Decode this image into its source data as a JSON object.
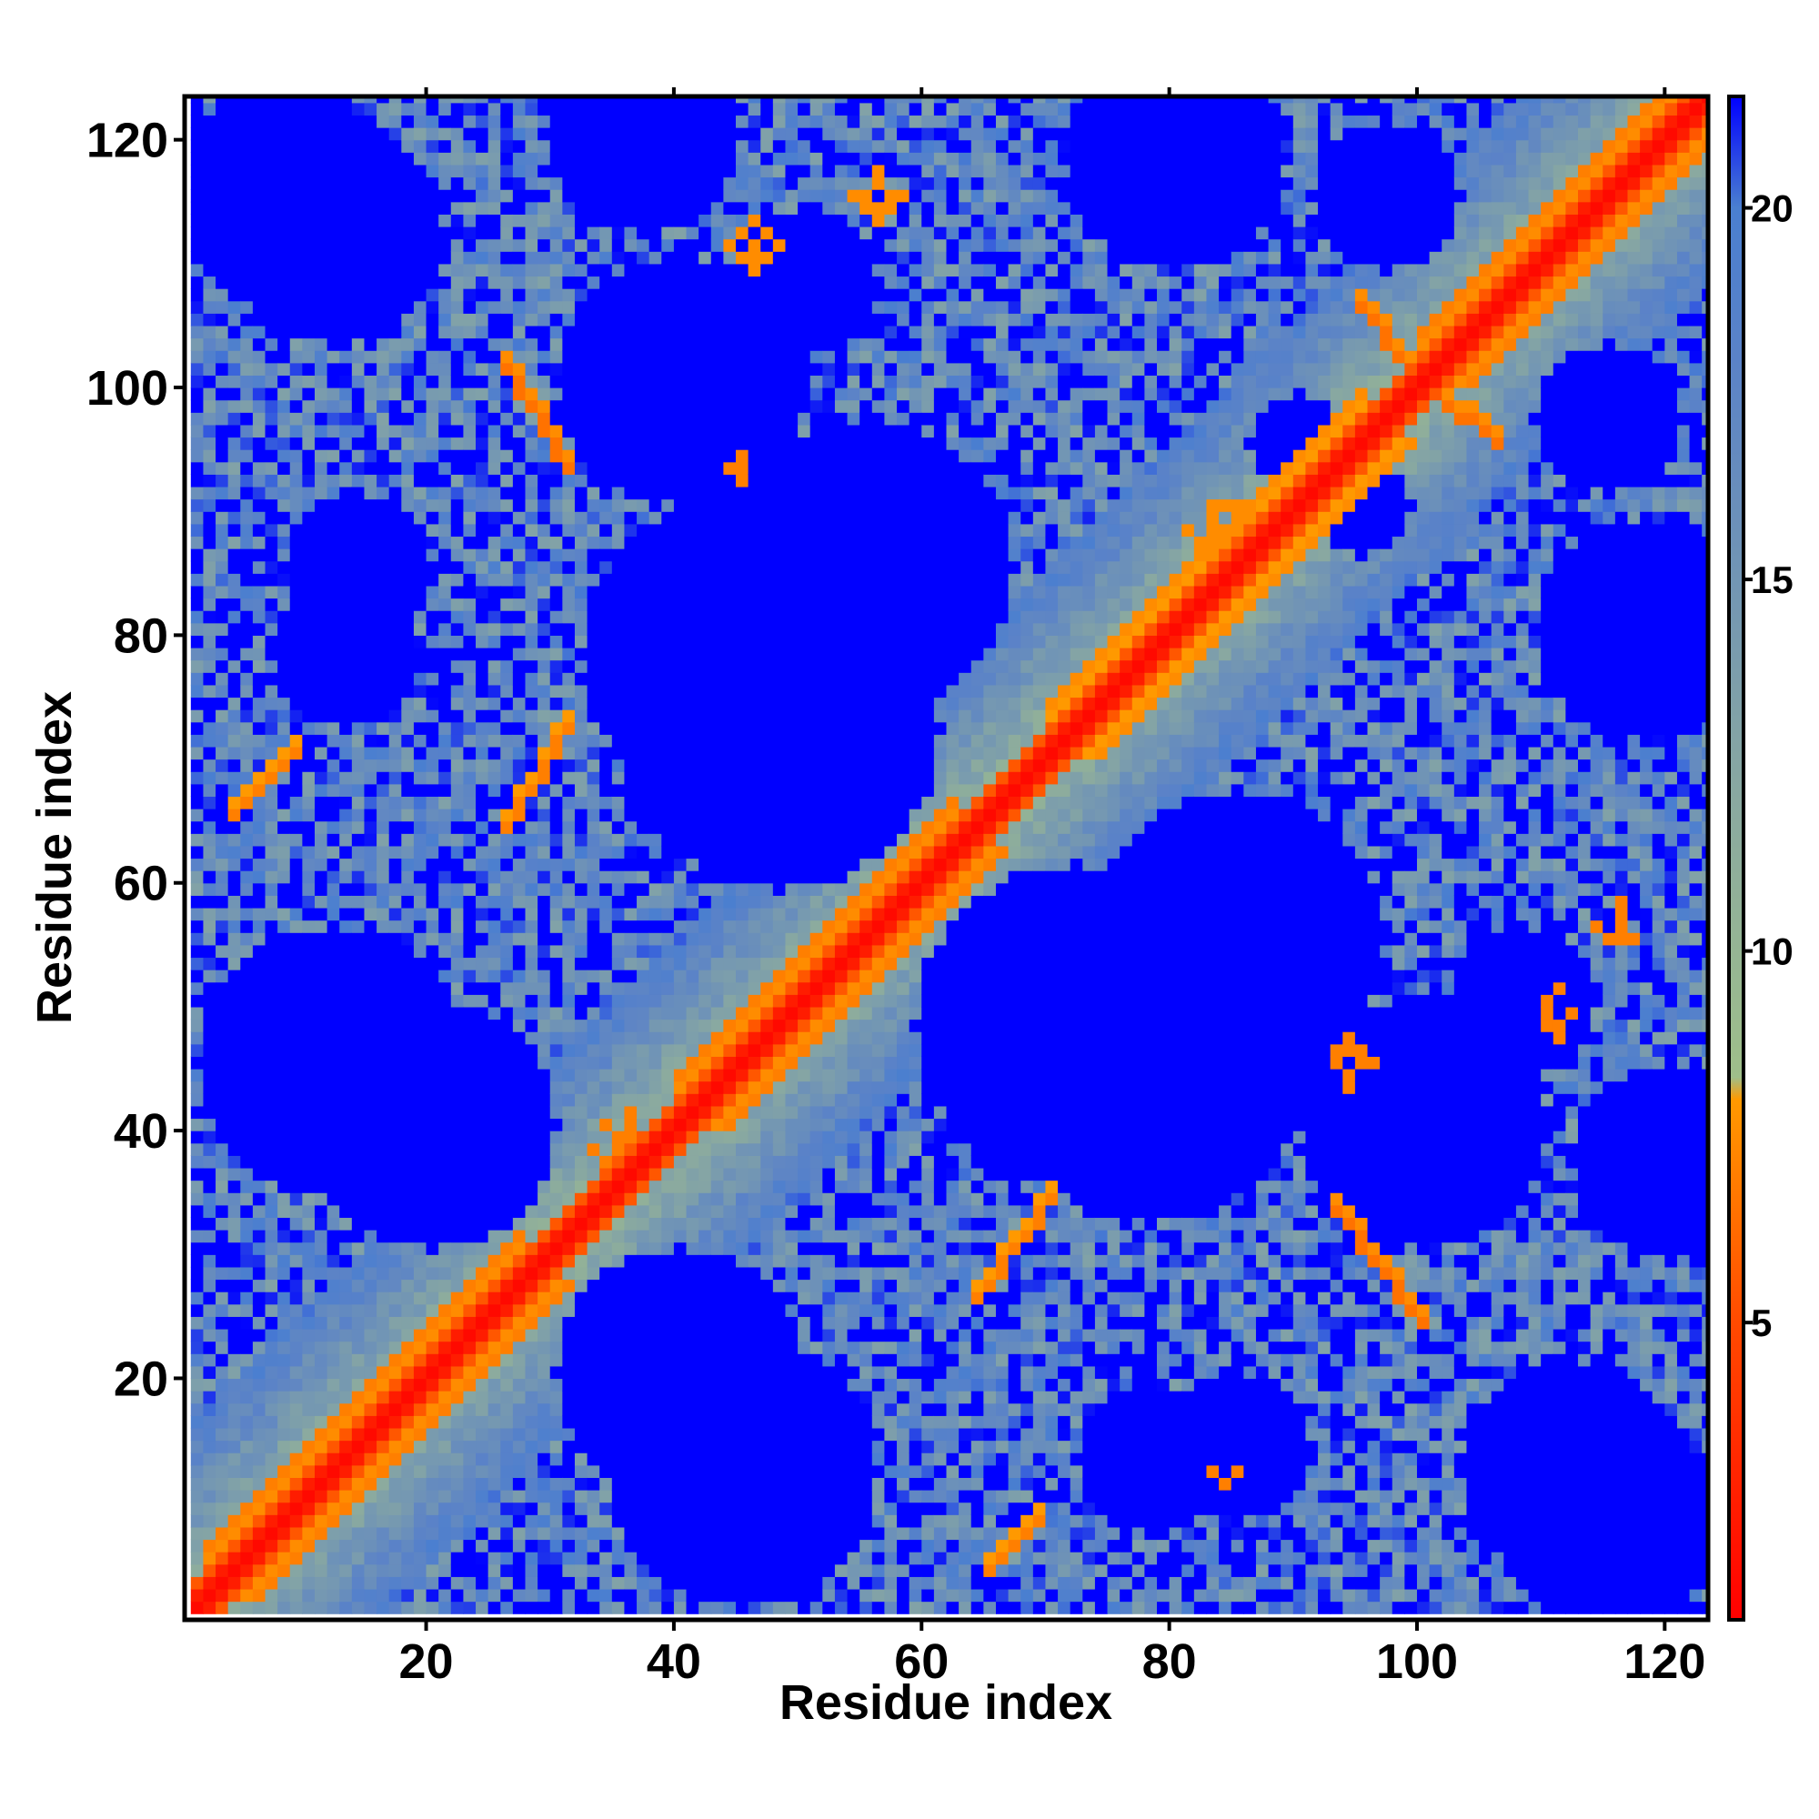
{
  "chart_data": {
    "type": "heatmap",
    "title": "",
    "xlabel": "Residue index",
    "ylabel": "Residue index",
    "x_range": [
      1,
      123
    ],
    "y_range": [
      1,
      123
    ],
    "n_residues": 123,
    "x_ticks": [
      20,
      40,
      60,
      80,
      100,
      120
    ],
    "y_ticks": [
      20,
      40,
      60,
      80,
      100,
      120
    ],
    "colorbar": {
      "min": 1,
      "max": 21.5,
      "ticks": [
        5,
        10,
        15,
        20
      ],
      "stops": [
        {
          "value": 1.0,
          "color": "#ff0000"
        },
        {
          "value": 5.0,
          "color": "#ff4a00"
        },
        {
          "value": 8.0,
          "color": "#ff9900"
        },
        {
          "value": 8.3,
          "color": "#9fbf8a"
        },
        {
          "value": 12.0,
          "color": "#8aa9a0"
        },
        {
          "value": 18.0,
          "color": "#5a82c8"
        },
        {
          "value": 20.0,
          "color": "#4a7fd0"
        },
        {
          "value": 21.5,
          "color": "#0000ff"
        }
      ]
    },
    "contact_features": [
      {
        "type": "diagonal",
        "from": 1,
        "to": 123,
        "value": 1.5
      },
      {
        "type": "band",
        "i_from": 1,
        "i_to": 123,
        "offset": 2,
        "value": 5.5
      },
      {
        "type": "band",
        "i_from": 2,
        "i_to": 27,
        "offset": 4,
        "value": 7.0
      },
      {
        "type": "band",
        "i_from": 40,
        "i_to": 62,
        "offset": 4,
        "value": 7.0
      },
      {
        "type": "band",
        "i_from": 70,
        "i_to": 95,
        "offset": 4,
        "value": 7.5
      },
      {
        "type": "band",
        "i_from": 100,
        "i_to": 120,
        "offset": 4,
        "value": 7.0
      },
      {
        "type": "antiparallel",
        "i_from": 26,
        "i_to": 31,
        "j_from": 101,
        "j_to": 93,
        "value": 6.5
      },
      {
        "type": "antiparallel",
        "i_from": 26,
        "i_to": 31,
        "j_from": 64,
        "j_to": 72,
        "value": 7.0
      },
      {
        "type": "antiparallel",
        "i_from": 4,
        "i_to": 9,
        "j_from": 65,
        "j_to": 70,
        "value": 7.0
      },
      {
        "type": "antiparallel",
        "i_from": 93,
        "i_to": 100,
        "j_from": 33,
        "j_to": 24,
        "value": 6.5
      },
      {
        "type": "antiparallel",
        "i_from": 64,
        "i_to": 70,
        "j_from": 26,
        "j_to": 34,
        "value": 7.0
      },
      {
        "type": "antiparallel",
        "i_from": 65,
        "i_to": 69,
        "j_from": 4,
        "j_to": 8,
        "value": 7.0
      },
      {
        "type": "antiparallel",
        "i_from": 95,
        "i_to": 99,
        "j_from": 106,
        "j_to": 101,
        "value": 6.5
      },
      {
        "type": "antiparallel",
        "i_from": 101,
        "i_to": 106,
        "j_from": 99,
        "j_to": 95,
        "value": 6.5
      },
      {
        "type": "blob",
        "i": 36,
        "j": 38,
        "radius": 3,
        "value": 7.0
      },
      {
        "type": "blob",
        "i": 84,
        "j": 88,
        "radius": 3,
        "value": 7.5
      },
      {
        "type": "blob",
        "i": 94,
        "j": 45,
        "radius": 2,
        "value": 7.0
      },
      {
        "type": "blob",
        "i": 111,
        "j": 49,
        "radius": 2,
        "value": 7.0
      },
      {
        "type": "blob",
        "i": 116,
        "j": 56,
        "radius": 2,
        "value": 7.0
      },
      {
        "type": "blob",
        "i": 56,
        "j": 115,
        "radius": 2,
        "value": 7.5
      },
      {
        "type": "blob",
        "i": 46,
        "j": 111,
        "radius": 2,
        "value": 7.5
      },
      {
        "type": "blob",
        "i": 45,
        "j": 93,
        "radius": 1,
        "value": 7.0
      },
      {
        "type": "blob",
        "i": 84,
        "j": 12,
        "radius": 1,
        "value": 7.0
      }
    ],
    "empty_regions": [
      {
        "i": 12,
        "j": 112,
        "r": 9
      },
      {
        "i": 50,
        "j": 108,
        "r": 6
      },
      {
        "i": 45,
        "j": 78,
        "r": 13
      },
      {
        "i": 72,
        "j": 48,
        "r": 13
      },
      {
        "i": 14,
        "j": 85,
        "r": 6
      },
      {
        "i": 20,
        "j": 40,
        "r": 10
      },
      {
        "i": 45,
        "j": 12,
        "r": 11
      },
      {
        "i": 78,
        "j": 13,
        "r": 6
      },
      {
        "i": 85,
        "j": 55,
        "r": 12
      },
      {
        "i": 95,
        "j": 90,
        "r": 4
      },
      {
        "i": 118,
        "j": 80,
        "r": 9
      },
      {
        "i": 120,
        "j": 37,
        "r": 8
      },
      {
        "i": 115,
        "j": 8,
        "r": 9
      },
      {
        "i": 40,
        "j": 100,
        "r": 10
      },
      {
        "i": 80,
        "j": 42,
        "r": 6
      },
      {
        "i": 115,
        "j": 97,
        "r": 6
      }
    ]
  }
}
